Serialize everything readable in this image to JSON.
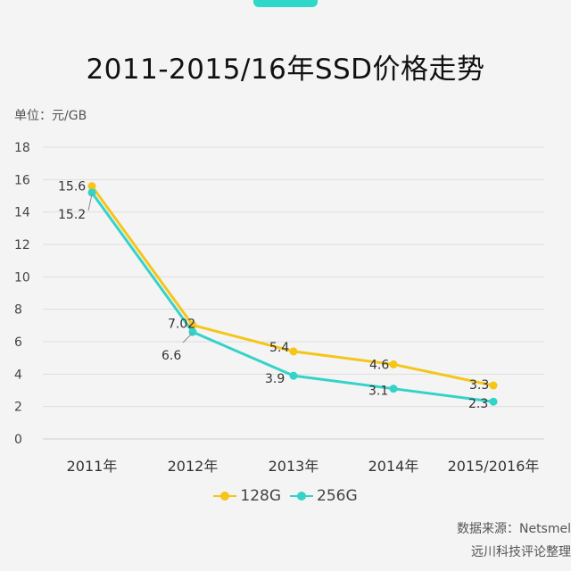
{
  "chart_data": {
    "type": "line",
    "title": "2011-2015/16年SSD价格走势",
    "unit_label": "单位：元/GB",
    "categories": [
      "2011年",
      "2012年",
      "2013年",
      "2014年",
      "2015/2016年"
    ],
    "ylim": [
      0,
      18
    ],
    "yticks": [
      0,
      2,
      4,
      6,
      8,
      10,
      12,
      14,
      16,
      18
    ],
    "grid": true,
    "legend_position": "bottom",
    "series": [
      {
        "name": "128G",
        "color": "#f5c518",
        "values": [
          15.6,
          7.02,
          5.4,
          4.6,
          3.3
        ],
        "labels": [
          "15.6",
          "7.02",
          "5.4",
          "4.6",
          "3.3"
        ]
      },
      {
        "name": "256G",
        "color": "#34d3c9",
        "values": [
          15.2,
          6.6,
          3.9,
          3.1,
          2.3
        ],
        "labels": [
          "15.2",
          "6.6",
          "3.9",
          "3.1",
          "2.3"
        ]
      }
    ]
  },
  "source": {
    "line1": "数据来源：Netsmel",
    "line2": "远川科技评论整理"
  }
}
